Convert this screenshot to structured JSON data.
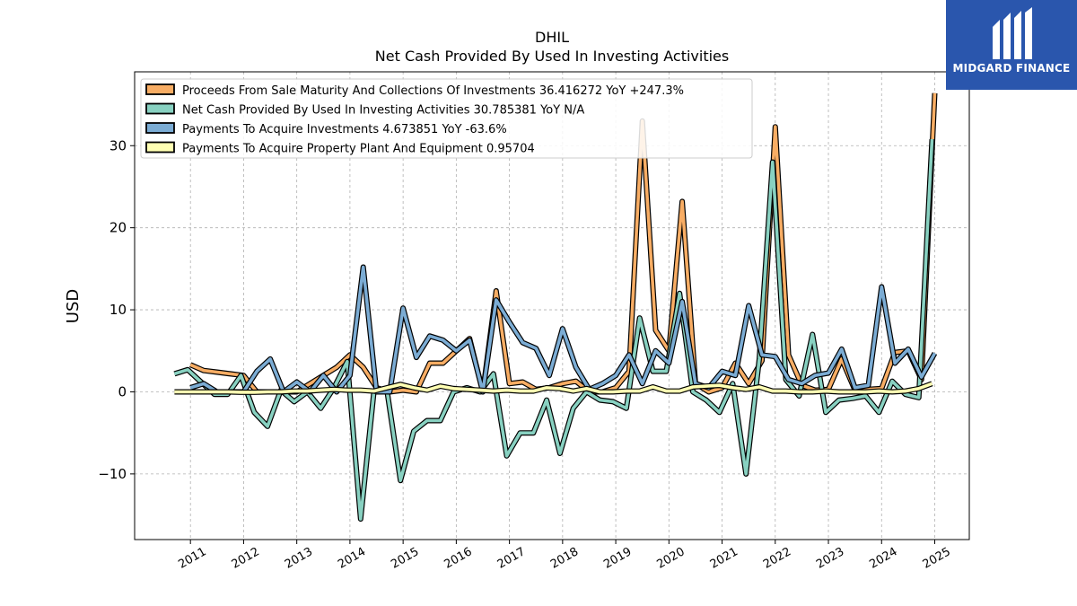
{
  "chart_data": {
    "type": "line",
    "title": "DHIL",
    "subtitle": "Net Cash Provided By Used In Investing Activities",
    "ylabel": "USD",
    "xlabel": "",
    "ylim": [
      -18,
      39
    ],
    "xlim": [
      2009.95,
      2025.65
    ],
    "yticks": [
      -10,
      0,
      10,
      20,
      30
    ],
    "ytick_labels": [
      "−10",
      "0",
      "10",
      "20",
      "30"
    ],
    "xticks": [
      2011,
      2012,
      2013,
      2014,
      2015,
      2016,
      2017,
      2018,
      2019,
      2020,
      2021,
      2022,
      2023,
      2024,
      2025
    ],
    "xtick_labels": [
      "2011",
      "2012",
      "2013",
      "2014",
      "2015",
      "2016",
      "2017",
      "2018",
      "2019",
      "2020",
      "2021",
      "2022",
      "2023",
      "2024",
      "2025"
    ],
    "grid": true,
    "legend_position": "upper-left",
    "series": [
      {
        "name": "Proceeds From Sale Maturity And Collections Of Investments",
        "legend": "Proceeds From Sale Maturity And Collections Of Investments  36.416272 YoY +247.3%",
        "color": "#f8ad64",
        "points": [
          [
            2011.0,
            3.3
          ],
          [
            2011.25,
            2.6
          ],
          [
            2011.5,
            2.4
          ],
          [
            2011.75,
            2.2
          ],
          [
            2012.0,
            2.0
          ],
          [
            2012.25,
            0.0
          ],
          [
            2012.5,
            0.0
          ],
          [
            2012.75,
            0.0
          ],
          [
            2013.0,
            0.0
          ],
          [
            2013.25,
            1.0
          ],
          [
            2013.5,
            2.0
          ],
          [
            2013.75,
            3.0
          ],
          [
            2014.0,
            4.5
          ],
          [
            2014.25,
            3.0
          ],
          [
            2014.5,
            0.5
          ],
          [
            2014.75,
            0.0
          ],
          [
            2015.0,
            0.2
          ],
          [
            2015.25,
            0.0
          ],
          [
            2015.5,
            3.5
          ],
          [
            2015.75,
            3.5
          ],
          [
            2016.0,
            5.0
          ],
          [
            2016.25,
            6.5
          ],
          [
            2016.5,
            0.0
          ],
          [
            2016.75,
            12.3
          ],
          [
            2017.0,
            1.0
          ],
          [
            2017.25,
            1.2
          ],
          [
            2017.5,
            0.3
          ],
          [
            2017.75,
            0.5
          ],
          [
            2018.0,
            1.0
          ],
          [
            2018.25,
            1.3
          ],
          [
            2018.5,
            0.0
          ],
          [
            2018.75,
            0.0
          ],
          [
            2019.0,
            0.5
          ],
          [
            2019.25,
            2.5
          ],
          [
            2019.5,
            33.0
          ],
          [
            2019.75,
            7.5
          ],
          [
            2020.0,
            5.0
          ],
          [
            2020.25,
            23.2
          ],
          [
            2020.5,
            1.0
          ],
          [
            2020.75,
            0.0
          ],
          [
            2021.0,
            0.5
          ],
          [
            2021.25,
            3.5
          ],
          [
            2021.5,
            1.0
          ],
          [
            2021.75,
            3.8
          ],
          [
            2022.0,
            32.3
          ],
          [
            2022.25,
            4.5
          ],
          [
            2022.5,
            0.8
          ],
          [
            2022.75,
            0.2
          ],
          [
            2023.0,
            0.3
          ],
          [
            2023.25,
            4.0
          ],
          [
            2023.5,
            0.2
          ],
          [
            2023.75,
            0.3
          ],
          [
            2024.0,
            0.4
          ],
          [
            2024.25,
            4.8
          ],
          [
            2024.5,
            5.0
          ],
          [
            2024.75,
            1.5
          ],
          [
            2025.0,
            36.4
          ]
        ]
      },
      {
        "name": "Net Cash Provided By Used In Investing Activities",
        "legend": "Net Cash Provided By Used In Investing Activities  30.785381 YoY N/A",
        "color": "#88d1c1",
        "points": [
          [
            2010.7,
            2.2
          ],
          [
            2010.95,
            2.7
          ],
          [
            2011.2,
            1.2
          ],
          [
            2011.45,
            -0.3
          ],
          [
            2011.7,
            -0.3
          ],
          [
            2011.95,
            2.0
          ],
          [
            2012.2,
            -2.5
          ],
          [
            2012.45,
            -4.2
          ],
          [
            2012.7,
            0.2
          ],
          [
            2012.95,
            -1.2
          ],
          [
            2013.2,
            0.0
          ],
          [
            2013.45,
            -2.0
          ],
          [
            2013.7,
            0.5
          ],
          [
            2013.95,
            3.7
          ],
          [
            2014.2,
            -15.5
          ],
          [
            2014.45,
            0.0
          ],
          [
            2014.7,
            0.0
          ],
          [
            2014.95,
            -10.8
          ],
          [
            2015.2,
            -4.8
          ],
          [
            2015.45,
            -3.5
          ],
          [
            2015.7,
            -3.5
          ],
          [
            2015.95,
            0.0
          ],
          [
            2016.2,
            0.5
          ],
          [
            2016.45,
            0.0
          ],
          [
            2016.7,
            2.2
          ],
          [
            2016.95,
            -7.8
          ],
          [
            2017.2,
            -5.0
          ],
          [
            2017.45,
            -5.0
          ],
          [
            2017.7,
            -1.0
          ],
          [
            2017.95,
            -7.5
          ],
          [
            2018.2,
            -2.0
          ],
          [
            2018.45,
            0.0
          ],
          [
            2018.7,
            -1.0
          ],
          [
            2018.95,
            -1.2
          ],
          [
            2019.2,
            -2.0
          ],
          [
            2019.45,
            9.0
          ],
          [
            2019.7,
            2.5
          ],
          [
            2019.95,
            2.5
          ],
          [
            2020.2,
            12.0
          ],
          [
            2020.45,
            0.0
          ],
          [
            2020.7,
            -1.0
          ],
          [
            2020.95,
            -2.5
          ],
          [
            2021.2,
            1.0
          ],
          [
            2021.45,
            -10.0
          ],
          [
            2021.7,
            4.0
          ],
          [
            2021.95,
            28.0
          ],
          [
            2022.2,
            1.5
          ],
          [
            2022.45,
            -0.5
          ],
          [
            2022.7,
            7.0
          ],
          [
            2022.95,
            -2.5
          ],
          [
            2023.2,
            -1.0
          ],
          [
            2023.45,
            -0.8
          ],
          [
            2023.7,
            -0.5
          ],
          [
            2023.95,
            -2.5
          ],
          [
            2024.2,
            1.3
          ],
          [
            2024.45,
            -0.3
          ],
          [
            2024.7,
            -0.7
          ],
          [
            2024.95,
            30.8
          ]
        ]
      },
      {
        "name": "Payments To Acquire Investments",
        "legend": "Payments To Acquire Investments  4.673851 YoY -63.6%",
        "color": "#7bacd4",
        "points": [
          [
            2011.0,
            0.5
          ],
          [
            2011.25,
            1.0
          ],
          [
            2011.5,
            0.0
          ],
          [
            2011.75,
            0.0
          ],
          [
            2012.0,
            0.0
          ],
          [
            2012.25,
            2.5
          ],
          [
            2012.5,
            4.0
          ],
          [
            2012.75,
            0.0
          ],
          [
            2013.0,
            1.2
          ],
          [
            2013.25,
            0.0
          ],
          [
            2013.5,
            2.0
          ],
          [
            2013.75,
            0.0
          ],
          [
            2014.0,
            2.0
          ],
          [
            2014.25,
            15.2
          ],
          [
            2014.5,
            0.0
          ],
          [
            2014.75,
            0.0
          ],
          [
            2015.0,
            10.2
          ],
          [
            2015.25,
            4.2
          ],
          [
            2015.5,
            6.8
          ],
          [
            2015.75,
            6.3
          ],
          [
            2016.0,
            5.0
          ],
          [
            2016.25,
            6.3
          ],
          [
            2016.5,
            0.0
          ],
          [
            2016.75,
            11.2
          ],
          [
            2017.0,
            8.5
          ],
          [
            2017.25,
            6.0
          ],
          [
            2017.5,
            5.3
          ],
          [
            2017.75,
            2.0
          ],
          [
            2018.0,
            7.7
          ],
          [
            2018.25,
            3.0
          ],
          [
            2018.5,
            0.3
          ],
          [
            2018.75,
            1.0
          ],
          [
            2019.0,
            2.0
          ],
          [
            2019.25,
            4.5
          ],
          [
            2019.5,
            1.0
          ],
          [
            2019.75,
            5.0
          ],
          [
            2020.0,
            3.5
          ],
          [
            2020.25,
            11.0
          ],
          [
            2020.5,
            1.0
          ],
          [
            2020.75,
            0.5
          ],
          [
            2021.0,
            2.5
          ],
          [
            2021.25,
            2.0
          ],
          [
            2021.5,
            10.5
          ],
          [
            2021.75,
            4.5
          ],
          [
            2022.0,
            4.3
          ],
          [
            2022.25,
            1.5
          ],
          [
            2022.5,
            1.0
          ],
          [
            2022.75,
            2.0
          ],
          [
            2023.0,
            2.3
          ],
          [
            2023.25,
            5.2
          ],
          [
            2023.5,
            0.5
          ],
          [
            2023.75,
            0.8
          ],
          [
            2024.0,
            12.8
          ],
          [
            2024.25,
            3.5
          ],
          [
            2024.5,
            5.2
          ],
          [
            2024.75,
            1.8
          ],
          [
            2025.0,
            4.7
          ]
        ]
      },
      {
        "name": "Payments To Acquire Property Plant And Equipment",
        "legend": "Payments To Acquire Property Plant And Equipment  0.95704",
        "color": "#ffffb3",
        "points": [
          [
            2010.7,
            0.0
          ],
          [
            2010.95,
            0.0
          ],
          [
            2011.2,
            0.0
          ],
          [
            2011.45,
            0.0
          ],
          [
            2011.7,
            0.0
          ],
          [
            2011.95,
            -0.05
          ],
          [
            2012.2,
            -0.05
          ],
          [
            2012.45,
            0.0
          ],
          [
            2012.7,
            0.0
          ],
          [
            2012.95,
            0.1
          ],
          [
            2013.2,
            0.1
          ],
          [
            2013.45,
            0.2
          ],
          [
            2013.7,
            0.3
          ],
          [
            2013.95,
            0.2
          ],
          [
            2014.2,
            0.2
          ],
          [
            2014.45,
            0.1
          ],
          [
            2014.7,
            0.5
          ],
          [
            2014.95,
            0.9
          ],
          [
            2015.2,
            0.5
          ],
          [
            2015.45,
            0.2
          ],
          [
            2015.7,
            0.7
          ],
          [
            2015.95,
            0.4
          ],
          [
            2016.2,
            0.3
          ],
          [
            2016.45,
            0.2
          ],
          [
            2016.7,
            0.1
          ],
          [
            2016.95,
            0.2
          ],
          [
            2017.2,
            0.1
          ],
          [
            2017.45,
            0.1
          ],
          [
            2017.7,
            0.5
          ],
          [
            2017.95,
            0.4
          ],
          [
            2018.2,
            0.1
          ],
          [
            2018.45,
            0.4
          ],
          [
            2018.7,
            0.0
          ],
          [
            2018.95,
            0.0
          ],
          [
            2019.2,
            0.1
          ],
          [
            2019.45,
            0.1
          ],
          [
            2019.7,
            0.6
          ],
          [
            2019.95,
            0.1
          ],
          [
            2020.2,
            0.1
          ],
          [
            2020.45,
            0.6
          ],
          [
            2020.7,
            0.7
          ],
          [
            2020.95,
            0.8
          ],
          [
            2021.2,
            0.5
          ],
          [
            2021.45,
            0.3
          ],
          [
            2021.7,
            0.6
          ],
          [
            2021.95,
            0.1
          ],
          [
            2022.2,
            0.1
          ],
          [
            2022.45,
            0.0
          ],
          [
            2022.7,
            0.0
          ],
          [
            2022.95,
            0.1
          ],
          [
            2023.2,
            0.0
          ],
          [
            2023.45,
            0.0
          ],
          [
            2023.7,
            0.0
          ],
          [
            2023.95,
            0.1
          ],
          [
            2024.2,
            0.0
          ],
          [
            2024.45,
            0.1
          ],
          [
            2024.7,
            0.4
          ],
          [
            2024.95,
            1.0
          ]
        ]
      }
    ]
  },
  "branding": {
    "logo_text": "MIDGARD FINANCE",
    "logo_color": "#2a56ad"
  }
}
